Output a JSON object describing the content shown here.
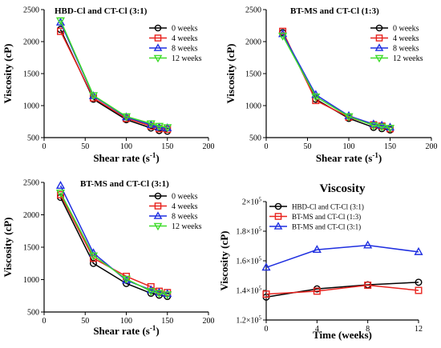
{
  "chart_data": [
    {
      "type": "line",
      "title": "HBD-Cl and CT-Cl  (3:1)",
      "xlabel": "Shear rate (s",
      "xlabel_sup": "-1",
      "xlabel_end": ")",
      "ylabel": "Viscosity (cP)",
      "xlim": [
        0,
        200
      ],
      "ylim": [
        500,
        2500
      ],
      "xticks": [
        0,
        50,
        100,
        150,
        200
      ],
      "yticks": [
        500,
        1000,
        1500,
        2000,
        2500
      ],
      "x": [
        20,
        60,
        100,
        130,
        140,
        150
      ],
      "legend_position": "top-right",
      "series": [
        {
          "name": "0 weeks",
          "color": "#000000",
          "marker": "circle",
          "values": [
            2190,
            1100,
            780,
            650,
            610,
            600
          ]
        },
        {
          "name": "4 weeks",
          "color": "#e8231e",
          "marker": "square",
          "values": [
            2160,
            1120,
            800,
            680,
            640,
            630
          ]
        },
        {
          "name": "8 weeks",
          "color": "#1f2fe0",
          "marker": "triangle-up",
          "values": [
            2300,
            1150,
            820,
            700,
            660,
            650
          ]
        },
        {
          "name": "12 weeks",
          "color": "#3fdc2b",
          "marker": "triangle-down",
          "values": [
            2330,
            1160,
            830,
            720,
            680,
            660
          ]
        }
      ]
    },
    {
      "type": "line",
      "title": "BT-MS and CT-Cl  (1:3)",
      "xlabel": "Shear rate (s",
      "xlabel_sup": "-1",
      "xlabel_end": ")",
      "ylabel": "Viscosity (cP)",
      "xlim": [
        0,
        200
      ],
      "ylim": [
        500,
        2500
      ],
      "xticks": [
        0,
        50,
        100,
        150,
        200
      ],
      "yticks": [
        500,
        1000,
        1500,
        2000,
        2500
      ],
      "x": [
        20,
        60,
        100,
        130,
        140,
        150
      ],
      "legend_position": "top-right",
      "series": [
        {
          "name": "0 weeks",
          "color": "#000000",
          "marker": "circle",
          "values": [
            2140,
            1100,
            800,
            660,
            640,
            620
          ]
        },
        {
          "name": "4 weeks",
          "color": "#e8231e",
          "marker": "square",
          "values": [
            2160,
            1080,
            820,
            700,
            680,
            640
          ]
        },
        {
          "name": "8 weeks",
          "color": "#1f2fe0",
          "marker": "triangle-up",
          "values": [
            2120,
            1170,
            840,
            710,
            690,
            660
          ]
        },
        {
          "name": "12 weeks",
          "color": "#3fdc2b",
          "marker": "triangle-down",
          "values": [
            2090,
            1140,
            830,
            690,
            670,
            650
          ]
        }
      ]
    },
    {
      "type": "line",
      "title": "BT-MS and CT-Cl (3:1)",
      "xlabel": "Shear rate (s",
      "xlabel_sup": "-1",
      "xlabel_end": ")",
      "ylabel": "Viscosity (cP)",
      "xlim": [
        0,
        200
      ],
      "ylim": [
        500,
        2500
      ],
      "xticks": [
        0,
        50,
        100,
        150,
        200
      ],
      "yticks": [
        500,
        1000,
        1500,
        2000,
        2500
      ],
      "x": [
        20,
        60,
        100,
        130,
        140,
        150
      ],
      "legend_position": "top-right",
      "series": [
        {
          "name": "0 weeks",
          "color": "#000000",
          "marker": "circle",
          "values": [
            2270,
            1250,
            940,
            790,
            760,
            740
          ]
        },
        {
          "name": "4 weeks",
          "color": "#e8231e",
          "marker": "square",
          "values": [
            2310,
            1330,
            1050,
            890,
            820,
            800
          ]
        },
        {
          "name": "8 weeks",
          "color": "#1f2fe0",
          "marker": "triangle-up",
          "values": [
            2450,
            1410,
            990,
            840,
            800,
            780
          ]
        },
        {
          "name": "12 weeks",
          "color": "#3fdc2b",
          "marker": "triangle-down",
          "values": [
            2340,
            1370,
            1010,
            820,
            790,
            770
          ]
        }
      ]
    },
    {
      "type": "line",
      "title": "Viscosity",
      "xlabel": "Time (weeks)",
      "ylabel": "Viscosity (cP)",
      "xlim": [
        0,
        12
      ],
      "ylim": [
        120000,
        200000
      ],
      "xticks": [
        0,
        4,
        8,
        12
      ],
      "xtick_labels": [
        "0",
        "4",
        "8",
        "12"
      ],
      "yticks": [
        120000,
        140000,
        160000,
        180000,
        200000
      ],
      "ytick_labels": [
        {
          "m": "1.2×10",
          "e": "5"
        },
        {
          "m": "1.4×10",
          "e": "5"
        },
        {
          "m": "1.6×10",
          "e": "5"
        },
        {
          "m": "1.8×10",
          "e": "5"
        },
        {
          "m": "2×10",
          "e": "5"
        }
      ],
      "x": [
        0,
        4,
        8,
        12
      ],
      "legend_position": "top-left",
      "series": [
        {
          "name": "HBD-Cl and CT-Cl  (3:1)",
          "color": "#000000",
          "marker": "circle",
          "values": [
            135500,
            141000,
            143800,
            145500
          ]
        },
        {
          "name": "BT-MS and CT-Cl  (1:3)",
          "color": "#e8231e",
          "marker": "square",
          "values": [
            137500,
            139500,
            143500,
            140000
          ]
        },
        {
          "name": "BT-MS and CT-Cl  (3:1)",
          "color": "#1f2fe0",
          "marker": "triangle-up",
          "values": [
            155500,
            167500,
            170500,
            166000
          ]
        }
      ]
    }
  ]
}
